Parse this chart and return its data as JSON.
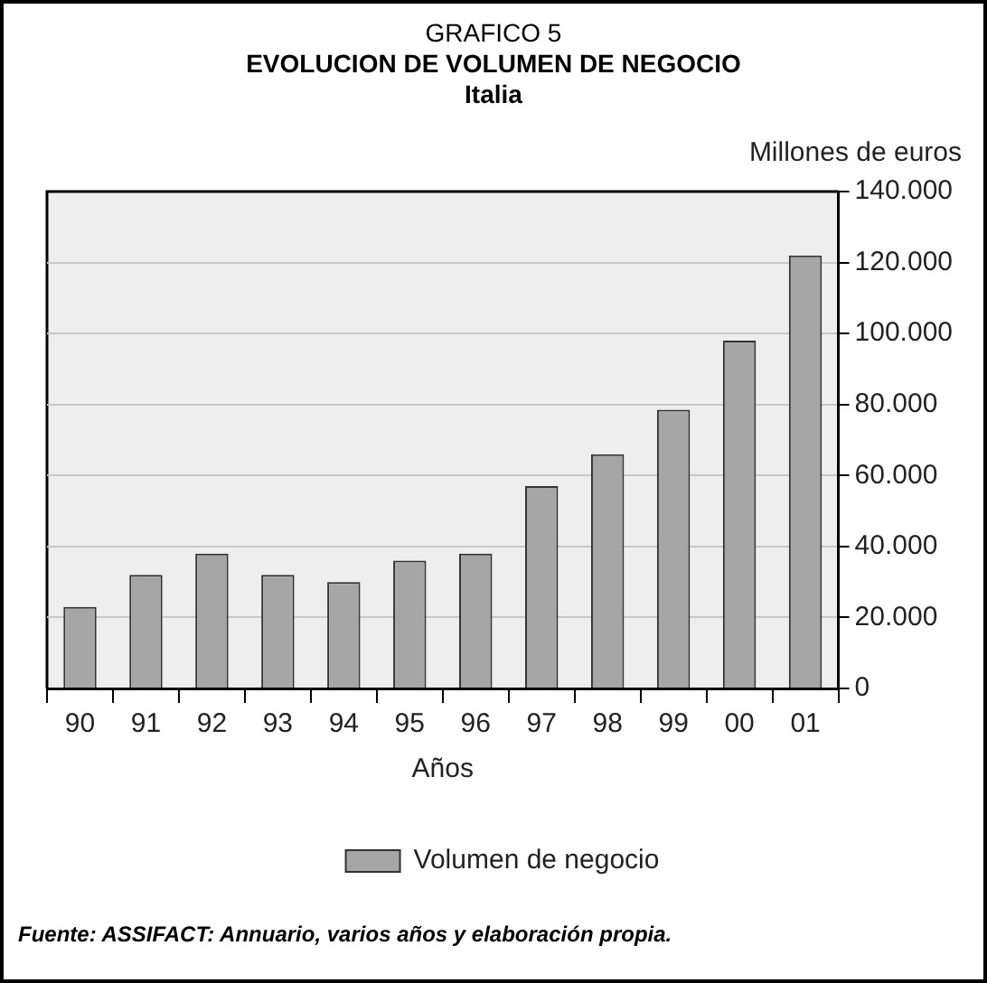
{
  "chart_data": {
    "type": "bar",
    "title": "EVOLUCION DE VOLUMEN DE NEGOCIO",
    "subtitle": "Italia",
    "xlabel": "Años",
    "ylabel": "Millones de euros",
    "annotations": [
      "GRAFICO 5",
      "Fuente: ASSIFACT: Annuario, varios años y elaboración propia."
    ],
    "categories": [
      "90",
      "91",
      "92",
      "93",
      "94",
      "95",
      "96",
      "97",
      "98",
      "99",
      "00",
      "01"
    ],
    "series": [
      {
        "name": "Volumen de negocio",
        "color": "#a6a6a6",
        "values": [
          23000,
          32000,
          38000,
          32000,
          30000,
          36000,
          38000,
          57000,
          66000,
          78500,
          98000,
          122000
        ]
      }
    ],
    "ylim": [
      0,
      140000
    ],
    "yticks": [
      0,
      {
        "value": 20000,
        "label": "20.000"
      },
      {
        "value": 40000,
        "label": "40.000"
      },
      {
        "value": 60000,
        "label": "60.000"
      },
      {
        "value": 80000,
        "label": "80.000"
      },
      {
        "value": 100000,
        "label": "100.000"
      },
      {
        "value": 120000,
        "label": "120.000"
      },
      {
        "value": 140000,
        "label": "140.000"
      }
    ],
    "grid": "y",
    "legend": "bottom"
  }
}
